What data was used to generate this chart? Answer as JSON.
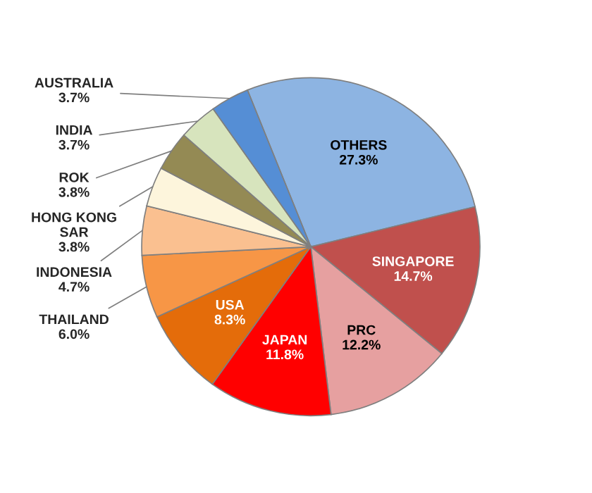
{
  "chart_data": {
    "type": "pie",
    "categories": [
      "OTHERS",
      "SINGAPORE",
      "PRC",
      "JAPAN",
      "USA",
      "THAILAND",
      "INDONESIA",
      "HONG KONG SAR",
      "ROK",
      "INDIA",
      "AUSTRALIA"
    ],
    "values": [
      27.3,
      14.7,
      12.2,
      11.8,
      8.3,
      6.0,
      4.7,
      3.8,
      3.8,
      3.7,
      3.7
    ],
    "value_labels": [
      "27.3%",
      "14.7%",
      "12.2%",
      "11.8%",
      "8.3%",
      "6.0%",
      "4.7%",
      "3.8%",
      "3.8%",
      "3.7%",
      "3.7%"
    ],
    "colors": [
      "#8db4e2",
      "#c0504d",
      "#e6a0a0",
      "#ff0000",
      "#e46c0a",
      "#f79646",
      "#fac090",
      "#fdf5dc",
      "#948a54",
      "#d7e4bd",
      "#558ed5"
    ]
  }
}
